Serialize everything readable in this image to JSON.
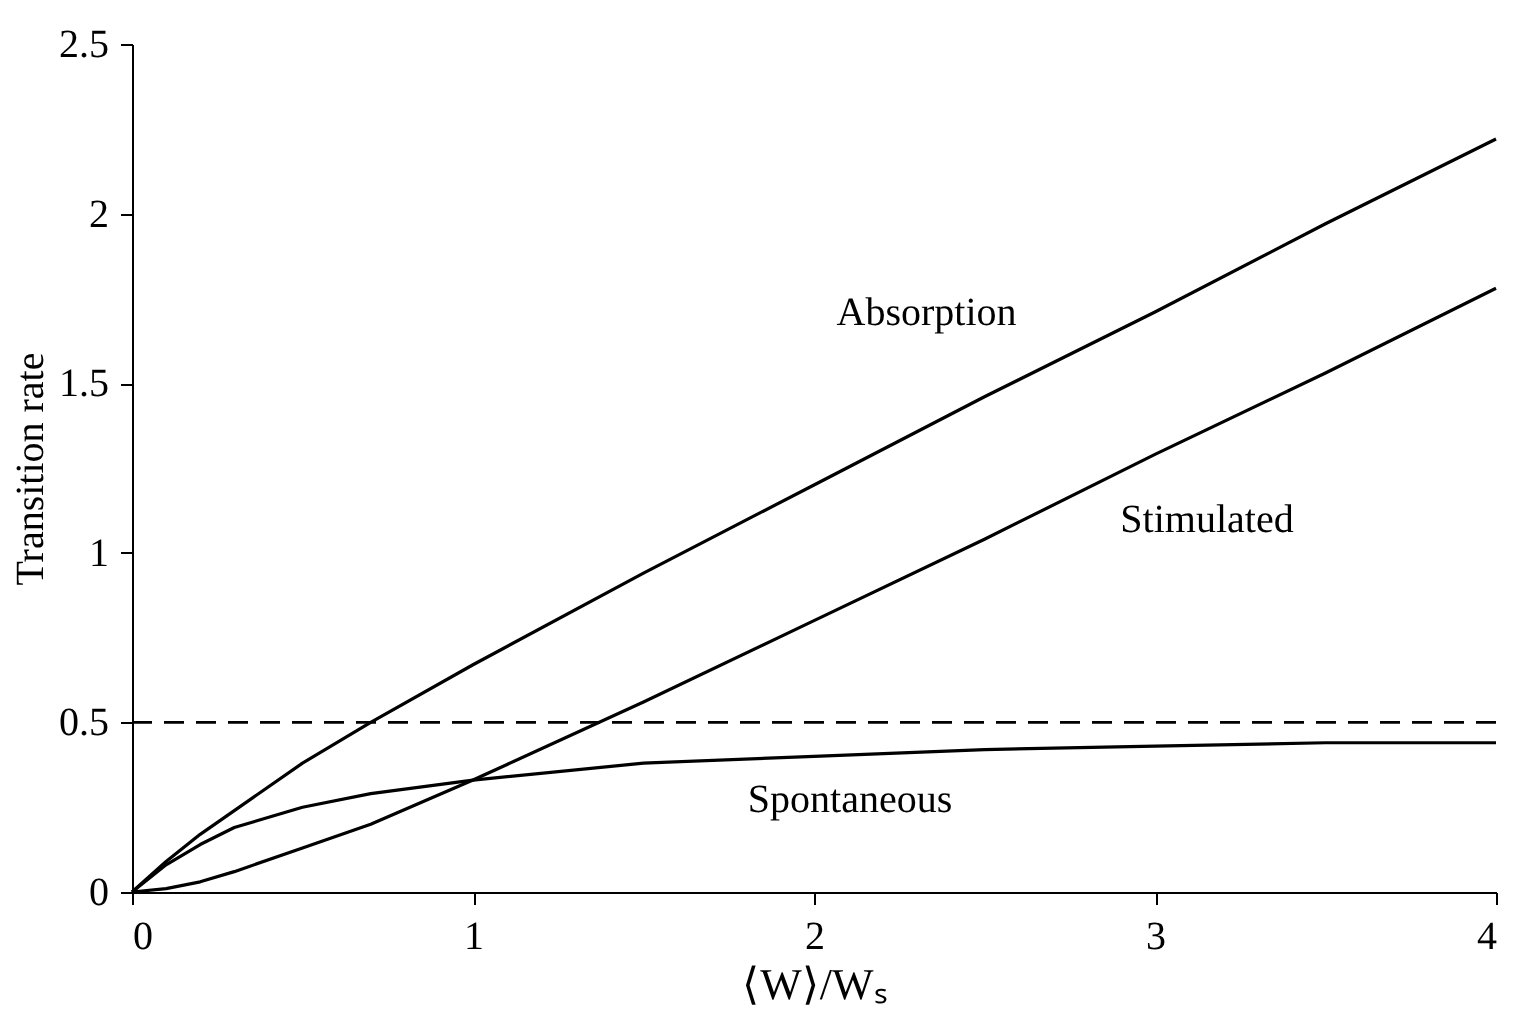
{
  "chart_data": {
    "type": "line",
    "xlabel": "⟨W⟩/Wₛ",
    "ylabel": "Transition rate",
    "x": [
      0,
      0.1,
      0.2,
      0.3,
      0.5,
      0.7,
      1,
      1.5,
      2,
      2.5,
      3,
      3.5,
      4
    ],
    "series": [
      {
        "name": "Absorption",
        "color": "#000000",
        "values": [
          0,
          0.09,
          0.17,
          0.24,
          0.38,
          0.5,
          0.67,
          0.94,
          1.2,
          1.46,
          1.71,
          1.97,
          2.22
        ]
      },
      {
        "name": "Stimulated",
        "color": "#000000",
        "values": [
          0,
          0.01,
          0.03,
          0.06,
          0.13,
          0.2,
          0.33,
          0.56,
          0.8,
          1.04,
          1.29,
          1.53,
          1.78
        ]
      },
      {
        "name": "Spontaneous",
        "color": "#000000",
        "values": [
          0,
          0.08,
          0.14,
          0.19,
          0.25,
          0.29,
          0.33,
          0.38,
          0.4,
          0.42,
          0.43,
          0.44,
          0.44
        ]
      }
    ],
    "xlim": [
      0,
      4
    ],
    "xticks": [
      0,
      1,
      2,
      3,
      4
    ],
    "ylim": [
      0,
      2.5
    ],
    "yticks": [
      0,
      0.5,
      1,
      1.5,
      2,
      2.5
    ],
    "ref_lines": [
      {
        "axis": "y",
        "value": 0.5,
        "line_style": "dashed",
        "color": "#000000"
      }
    ],
    "grid": false,
    "marker": "none",
    "line_style": "solid"
  }
}
